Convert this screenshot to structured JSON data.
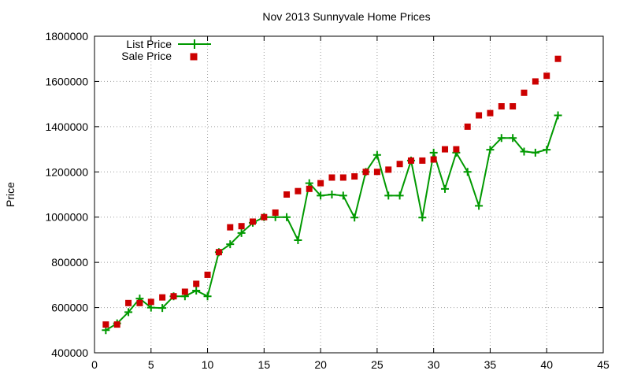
{
  "chart_data": {
    "type": "line",
    "title": "Nov 2013 Sunnyvale Home Prices",
    "xlabel": "",
    "ylabel": "Price",
    "xlim": [
      0,
      45
    ],
    "ylim": [
      400000,
      1800000
    ],
    "xticks": [
      "0",
      "5",
      "10",
      "15",
      "20",
      "25",
      "30",
      "35",
      "40",
      "45"
    ],
    "yticks": [
      "400000",
      "600000",
      "800000",
      "1000000",
      "1200000",
      "1400000",
      "1600000",
      "1800000"
    ],
    "grid": true,
    "legend_position": "top-left",
    "x": [
      1,
      2,
      3,
      4,
      5,
      6,
      7,
      8,
      9,
      10,
      11,
      12,
      13,
      14,
      15,
      16,
      17,
      18,
      19,
      20,
      21,
      22,
      23,
      24,
      25,
      26,
      27,
      28,
      29,
      30,
      31,
      32,
      33,
      34,
      35,
      36,
      37,
      38,
      39,
      40,
      41
    ],
    "series": [
      {
        "name": "List Price",
        "style": "line+plus",
        "color": "#009900",
        "values": [
          500000,
          530000,
          580000,
          640000,
          600000,
          598000,
          650000,
          650000,
          675000,
          650000,
          845000,
          880000,
          930000,
          975000,
          1000000,
          1000000,
          1000000,
          898000,
          1150000,
          1095000,
          1100000,
          1095000,
          998000,
          1200000,
          1275000,
          1095000,
          1095000,
          1250000,
          998000,
          1285000,
          1125000,
          1285000,
          1200000,
          1050000,
          1298000,
          1350000,
          1350000,
          1290000,
          1285000,
          1298000,
          1450000
        ]
      },
      {
        "name": "Sale Price",
        "style": "points",
        "color": "#cc0000",
        "values": [
          525000,
          525000,
          620000,
          620000,
          625000,
          645000,
          650000,
          670000,
          705000,
          745000,
          845000,
          955000,
          960000,
          980000,
          1000000,
          1020000,
          1100000,
          1115000,
          1125000,
          1150000,
          1175000,
          1175000,
          1180000,
          1200000,
          1200000,
          1210000,
          1235000,
          1250000,
          1250000,
          1255000,
          1300000,
          1300000,
          1400000,
          1450000,
          1460000,
          1490000,
          1490000,
          1550000,
          1600000,
          1625000,
          1700000
        ]
      }
    ]
  }
}
